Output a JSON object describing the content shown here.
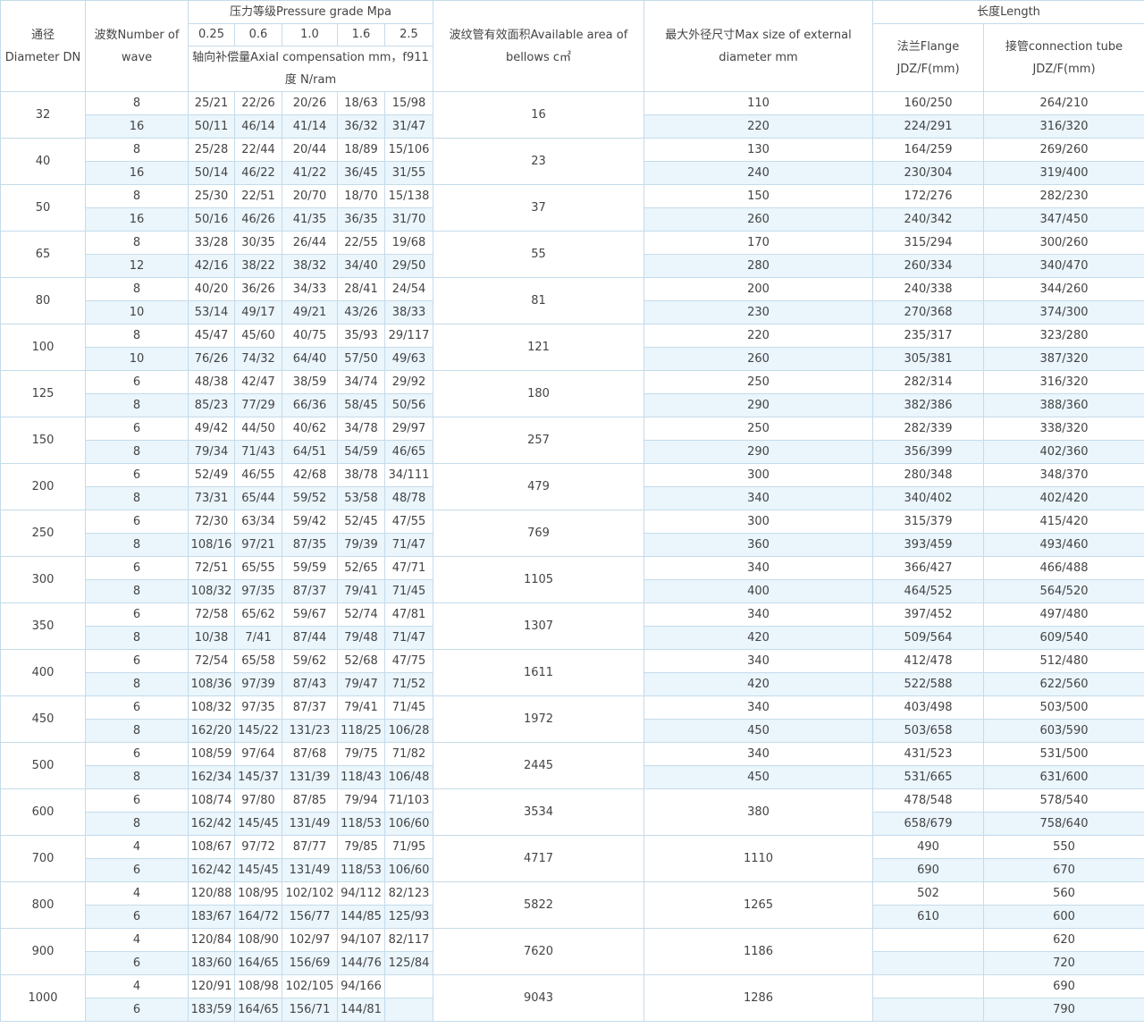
{
  "table": {
    "header": {
      "dn": "通径Diameter DN",
      "wave": "波数Number of wave",
      "pressure": "压力等级Pressure grade Mpa",
      "grades": [
        "0.25",
        "0.6",
        "1.0",
        "1.6",
        "2.5"
      ],
      "compensation": "轴向补偿量Axial compensation mm，f911度 N/ram",
      "area": "波纹管有效面积Available area of bellows c㎡",
      "max_size": "最大外径尺寸Max size of external diameter mm",
      "length": "长度Length",
      "flange": "法兰Flange JDZ/F(mm)",
      "tube": "接管connection tube JDZ/F(mm)"
    },
    "groups": [
      {
        "dn": "32",
        "area": "16",
        "rows": [
          {
            "wave": "8",
            "comp": [
              "25/21",
              "22/26",
              "20/26",
              "18/63",
              "15/98"
            ],
            "max": "110",
            "flange": "160/250",
            "tube": "264/210"
          },
          {
            "wave": "16",
            "comp": [
              "50/11",
              "46/14",
              "41/14",
              "36/32",
              "31/47"
            ],
            "max": "220",
            "flange": "224/291",
            "tube": "316/320"
          }
        ]
      },
      {
        "dn": "40",
        "area": "23",
        "rows": [
          {
            "wave": "8",
            "comp": [
              "25/28",
              "22/44",
              "20/44",
              "18/89",
              "15/106"
            ],
            "max": "130",
            "flange": "164/259",
            "tube": "269/260"
          },
          {
            "wave": "16",
            "comp": [
              "50/14",
              "46/22",
              "41/22",
              "36/45",
              "31/55"
            ],
            "max": "240",
            "flange": "230/304",
            "tube": "319/400"
          }
        ]
      },
      {
        "dn": "50",
        "area": "37",
        "rows": [
          {
            "wave": "8",
            "comp": [
              "25/30",
              "22/51",
              "20/70",
              "18/70",
              "15/138"
            ],
            "max": "150",
            "flange": "172/276",
            "tube": "282/230"
          },
          {
            "wave": "16",
            "comp": [
              "50/16",
              "46/26",
              "41/35",
              "36/35",
              "31/70"
            ],
            "max": "260",
            "flange": "240/342",
            "tube": "347/450"
          }
        ]
      },
      {
        "dn": "65",
        "area": "55",
        "rows": [
          {
            "wave": "8",
            "comp": [
              "33/28",
              "30/35",
              "26/44",
              "22/55",
              "19/68"
            ],
            "max": "170",
            "flange": "315/294",
            "tube": "300/260"
          },
          {
            "wave": "12",
            "comp": [
              "42/16",
              "38/22",
              "38/32",
              "34/40",
              "29/50"
            ],
            "max": "280",
            "flange": "260/334",
            "tube": "340/470"
          }
        ]
      },
      {
        "dn": "80",
        "area": "81",
        "rows": [
          {
            "wave": "8",
            "comp": [
              "40/20",
              "36/26",
              "34/33",
              "28/41",
              "24/54"
            ],
            "max": "200",
            "flange": "240/338",
            "tube": "344/260"
          },
          {
            "wave": "10",
            "comp": [
              "53/14",
              "49/17",
              "49/21",
              "43/26",
              "38/33"
            ],
            "max": "230",
            "flange": "270/368",
            "tube": "374/300"
          }
        ]
      },
      {
        "dn": "100",
        "area": "121",
        "rows": [
          {
            "wave": "8",
            "comp": [
              "45/47",
              "45/60",
              "40/75",
              "35/93",
              "29/117"
            ],
            "max": "220",
            "flange": "235/317",
            "tube": "323/280"
          },
          {
            "wave": "10",
            "comp": [
              "76/26",
              "74/32",
              "64/40",
              "57/50",
              "49/63"
            ],
            "max": "260",
            "flange": "305/381",
            "tube": "387/320"
          }
        ]
      },
      {
        "dn": "125",
        "area": "180",
        "rows": [
          {
            "wave": "6",
            "comp": [
              "48/38",
              "42/47",
              "38/59",
              "34/74",
              "29/92"
            ],
            "max": "250",
            "flange": "282/314",
            "tube": "316/320"
          },
          {
            "wave": "8",
            "comp": [
              "85/23",
              "77/29",
              "66/36",
              "58/45",
              "50/56"
            ],
            "max": "290",
            "flange": "382/386",
            "tube": "388/360"
          }
        ]
      },
      {
        "dn": "150",
        "area": "257",
        "rows": [
          {
            "wave": "6",
            "comp": [
              "49/42",
              "44/50",
              "40/62",
              "34/78",
              "29/97"
            ],
            "max": "250",
            "flange": "282/339",
            "tube": "338/320"
          },
          {
            "wave": "8",
            "comp": [
              "79/34",
              "71/43",
              "64/51",
              "54/59",
              "46/65"
            ],
            "max": "290",
            "flange": "356/399",
            "tube": "402/360"
          }
        ]
      },
      {
        "dn": "200",
        "area": "479",
        "rows": [
          {
            "wave": "6",
            "comp": [
              "52/49",
              "46/55",
              "42/68",
              "38/78",
              "34/111"
            ],
            "max": "300",
            "flange": "280/348",
            "tube": "348/370"
          },
          {
            "wave": "8",
            "comp": [
              "73/31",
              "65/44",
              "59/52",
              "53/58",
              "48/78"
            ],
            "max": "340",
            "flange": "340/402",
            "tube": "402/420"
          }
        ]
      },
      {
        "dn": "250",
        "area": "769",
        "rows": [
          {
            "wave": "6",
            "comp": [
              "72/30",
              "63/34",
              "59/42",
              "52/45",
              "47/55"
            ],
            "max": "300",
            "flange": "315/379",
            "tube": "415/420"
          },
          {
            "wave": "8",
            "comp": [
              "108/16",
              "97/21",
              "87/35",
              "79/39",
              "71/47"
            ],
            "max": "360",
            "flange": "393/459",
            "tube": "493/460"
          }
        ]
      },
      {
        "dn": "300",
        "area": "1105",
        "rows": [
          {
            "wave": "6",
            "comp": [
              "72/51",
              "65/55",
              "59/59",
              "52/65",
              "47/71"
            ],
            "max": "340",
            "flange": "366/427",
            "tube": "466/488"
          },
          {
            "wave": "8",
            "comp": [
              "108/32",
              "97/35",
              "87/37",
              "79/41",
              "71/45"
            ],
            "max": "400",
            "flange": "464/525",
            "tube": "564/520"
          }
        ]
      },
      {
        "dn": "350",
        "area": "1307",
        "rows": [
          {
            "wave": "6",
            "comp": [
              "72/58",
              "65/62",
              "59/67",
              "52/74",
              "47/81"
            ],
            "max": "340",
            "flange": "397/452",
            "tube": "497/480"
          },
          {
            "wave": "8",
            "comp": [
              "10/38",
              "7/41",
              "87/44",
              "79/48",
              "71/47"
            ],
            "max": "420",
            "flange": "509/564",
            "tube": "609/540"
          }
        ]
      },
      {
        "dn": "400",
        "area": "1611",
        "rows": [
          {
            "wave": "6",
            "comp": [
              "72/54",
              "65/58",
              "59/62",
              "52/68",
              "47/75"
            ],
            "max": "340",
            "flange": "412/478",
            "tube": "512/480"
          },
          {
            "wave": "8",
            "comp": [
              "108/36",
              "97/39",
              "87/43",
              "79/47",
              "71/52"
            ],
            "max": "420",
            "flange": "522/588",
            "tube": "622/560"
          }
        ]
      },
      {
        "dn": "450",
        "area": "1972",
        "rows": [
          {
            "wave": "6",
            "comp": [
              "108/32",
              "97/35",
              "87/37",
              "79/41",
              "71/45"
            ],
            "max": "340",
            "flange": "403/498",
            "tube": "503/500"
          },
          {
            "wave": "8",
            "comp": [
              "162/20",
              "145/22",
              "131/23",
              "118/25",
              "106/28"
            ],
            "max": "450",
            "flange": "503/658",
            "tube": "603/590"
          }
        ]
      },
      {
        "dn": "500",
        "area": "2445",
        "rows": [
          {
            "wave": "6",
            "comp": [
              "108/59",
              "97/64",
              "87/68",
              "79/75",
              "71/82"
            ],
            "max": "340",
            "flange": "431/523",
            "tube": "531/500"
          },
          {
            "wave": "8",
            "comp": [
              "162/34",
              "145/37",
              "131/39",
              "118/43",
              "106/48"
            ],
            "max": "450",
            "flange": "531/665",
            "tube": "631/600"
          }
        ]
      },
      {
        "dn": "600",
        "area": "3534",
        "max": "380",
        "rows": [
          {
            "wave": "6",
            "comp": [
              "108/74",
              "97/80",
              "87/85",
              "79/94",
              "71/103"
            ],
            "flange": "478/548",
            "tube": "578/540"
          },
          {
            "wave": "8",
            "comp": [
              "162/42",
              "145/45",
              "131/49",
              "118/53",
              "106/60"
            ],
            "flange": "658/679",
            "tube": "758/640"
          }
        ]
      },
      {
        "dn": "700",
        "area": "4717",
        "max": "1110",
        "rows": [
          {
            "wave": "4",
            "comp": [
              "108/67",
              "97/72",
              "87/77",
              "79/85",
              "71/95"
            ],
            "flange": "490",
            "tube": "550"
          },
          {
            "wave": "6",
            "comp": [
              "162/42",
              "145/45",
              "131/49",
              "118/53",
              "106/60"
            ],
            "flange": "690",
            "tube": "670"
          }
        ]
      },
      {
        "dn": "800",
        "area": "5822",
        "max": "1265",
        "rows": [
          {
            "wave": "4",
            "comp": [
              "120/88",
              "108/95",
              "102/102",
              "94/112",
              "82/123"
            ],
            "flange": "502",
            "tube": "560"
          },
          {
            "wave": "6",
            "comp": [
              "183/67",
              "164/72",
              "156/77",
              "144/85",
              "125/93"
            ],
            "flange": "610",
            "tube": "600"
          }
        ]
      },
      {
        "dn": "900",
        "area": "7620",
        "max": "1186",
        "rows": [
          {
            "wave": "4",
            "comp": [
              "120/84",
              "108/90",
              "102/97",
              "94/107",
              "82/117"
            ],
            "tube": "620"
          },
          {
            "wave": "6",
            "comp": [
              "183/60",
              "164/65",
              "156/69",
              "144/76",
              "125/84"
            ],
            "tube": "720"
          }
        ]
      },
      {
        "dn": "1000",
        "area": "9043",
        "max": "1286",
        "rows": [
          {
            "wave": "4",
            "comp": [
              "120/91",
              "108/98",
              "102/105",
              "94/166"
            ],
            "tube": "690"
          },
          {
            "wave": "6",
            "comp": [
              "183/59",
              "164/65",
              "156/71",
              "144/81"
            ],
            "tube": "790"
          }
        ]
      }
    ]
  }
}
